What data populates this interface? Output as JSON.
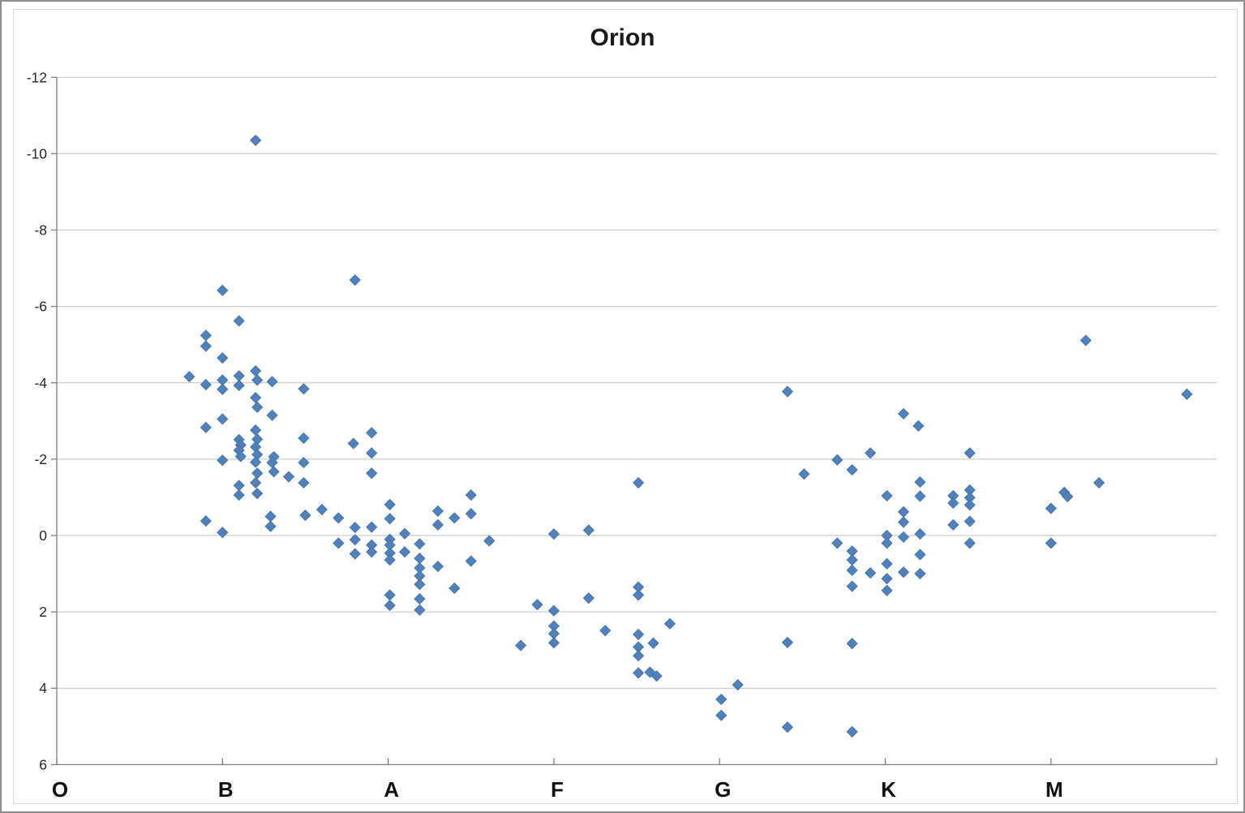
{
  "chart_data": {
    "type": "scatter",
    "title": "Orion",
    "xlabel": "",
    "ylabel": "",
    "x_axis": {
      "categories": [
        "O",
        "B",
        "A",
        "F",
        "G",
        "K",
        "M"
      ],
      "unit": "spectral class (fractional subclass 0=O ... 6=M)"
    },
    "y_axis": {
      "ticks": [
        -12,
        -10,
        -8,
        -6,
        -4,
        -2,
        0,
        2,
        4,
        6
      ],
      "min": -12,
      "max": 6,
      "inverted": true,
      "unit": "magnitude"
    },
    "legend": "none",
    "grid": "horizontal-only",
    "colors": {
      "marker_fill": "#4F81BD",
      "marker_stroke": "#426FA1",
      "gridline": "#C0C0C0",
      "axis": "#808080",
      "title_text": "#1A1A1A",
      "tick_text": "#262626"
    },
    "marker": {
      "shape": "diamond",
      "half_size_px": 6.5
    },
    "points": [
      [
        0.8,
        -4.16
      ],
      [
        0.9,
        -5.24
      ],
      [
        0.9,
        -4.96
      ],
      [
        0.9,
        -3.95
      ],
      [
        0.9,
        -2.83
      ],
      [
        0.9,
        -0.38
      ],
      [
        1.0,
        -6.42
      ],
      [
        1.0,
        -4.65
      ],
      [
        1.0,
        -4.07
      ],
      [
        1.0,
        -3.83
      ],
      [
        1.0,
        -3.05
      ],
      [
        1.0,
        -1.97
      ],
      [
        1.0,
        -0.08
      ],
      [
        1.1,
        -5.62
      ],
      [
        1.1,
        -4.18
      ],
      [
        1.1,
        -3.93
      ],
      [
        1.1,
        -2.51
      ],
      [
        1.11,
        -2.37
      ],
      [
        1.1,
        -2.23
      ],
      [
        1.11,
        -2.07
      ],
      [
        1.1,
        -1.31
      ],
      [
        1.1,
        -1.06
      ],
      [
        1.2,
        -10.35
      ],
      [
        1.2,
        -4.31
      ],
      [
        1.21,
        -4.07
      ],
      [
        1.2,
        -3.61
      ],
      [
        1.21,
        -3.36
      ],
      [
        1.2,
        -2.76
      ],
      [
        1.21,
        -2.52
      ],
      [
        1.2,
        -2.32
      ],
      [
        1.21,
        -2.12
      ],
      [
        1.2,
        -1.92
      ],
      [
        1.21,
        -1.63
      ],
      [
        1.2,
        -1.38
      ],
      [
        1.21,
        -1.1
      ],
      [
        1.3,
        -4.03
      ],
      [
        1.3,
        -3.15
      ],
      [
        1.31,
        -2.06
      ],
      [
        1.3,
        -1.91
      ],
      [
        1.31,
        -1.67
      ],
      [
        1.29,
        -0.5
      ],
      [
        1.29,
        -0.24
      ],
      [
        1.4,
        -1.54
      ],
      [
        1.49,
        -3.84
      ],
      [
        1.49,
        -2.55
      ],
      [
        1.49,
        -1.91
      ],
      [
        1.49,
        -1.38
      ],
      [
        1.5,
        -0.53
      ],
      [
        1.6,
        -0.68
      ],
      [
        1.7,
        -0.46
      ],
      [
        1.7,
        0.2
      ],
      [
        1.8,
        -6.69
      ],
      [
        1.79,
        -2.41
      ],
      [
        1.8,
        -0.21
      ],
      [
        1.8,
        0.11
      ],
      [
        1.8,
        0.48
      ],
      [
        1.9,
        -2.69
      ],
      [
        1.9,
        -2.16
      ],
      [
        1.9,
        -1.63
      ],
      [
        1.9,
        -0.22
      ],
      [
        1.9,
        0.25
      ],
      [
        1.9,
        0.43
      ],
      [
        2.01,
        -0.81
      ],
      [
        2.01,
        -0.44
      ],
      [
        2.01,
        0.1
      ],
      [
        2.01,
        0.25
      ],
      [
        2.01,
        0.46
      ],
      [
        2.01,
        0.64
      ],
      [
        2.01,
        1.56
      ],
      [
        2.01,
        1.83
      ],
      [
        2.1,
        -0.05
      ],
      [
        2.1,
        0.43
      ],
      [
        2.19,
        0.22
      ],
      [
        2.19,
        0.6
      ],
      [
        2.19,
        0.85
      ],
      [
        2.19,
        1.06
      ],
      [
        2.19,
        1.28
      ],
      [
        2.19,
        1.66
      ],
      [
        2.19,
        1.95
      ],
      [
        2.3,
        -0.64
      ],
      [
        2.3,
        -0.28
      ],
      [
        2.3,
        0.81
      ],
      [
        2.4,
        -0.46
      ],
      [
        2.4,
        1.38
      ],
      [
        2.5,
        -1.06
      ],
      [
        2.5,
        -0.57
      ],
      [
        2.5,
        0.67
      ],
      [
        2.61,
        0.14
      ],
      [
        2.8,
        2.88
      ],
      [
        2.9,
        1.81
      ],
      [
        3.0,
        -0.04
      ],
      [
        3.0,
        1.97
      ],
      [
        3.0,
        2.37
      ],
      [
        3.0,
        2.57
      ],
      [
        3.0,
        2.81
      ],
      [
        3.21,
        -0.14
      ],
      [
        3.21,
        1.64
      ],
      [
        3.31,
        2.49
      ],
      [
        3.51,
        -1.38
      ],
      [
        3.51,
        1.35
      ],
      [
        3.51,
        1.56
      ],
      [
        3.51,
        2.59
      ],
      [
        3.51,
        2.92
      ],
      [
        3.51,
        3.15
      ],
      [
        3.51,
        3.6
      ],
      [
        3.6,
        2.82
      ],
      [
        3.58,
        3.58
      ],
      [
        3.62,
        3.68
      ],
      [
        3.7,
        2.31
      ],
      [
        4.01,
        4.29
      ],
      [
        4.01,
        4.71
      ],
      [
        4.11,
        3.91
      ],
      [
        4.41,
        -3.77
      ],
      [
        4.41,
        2.8
      ],
      [
        4.41,
        5.02
      ],
      [
        4.51,
        -1.61
      ],
      [
        4.71,
        -1.98
      ],
      [
        4.71,
        0.2
      ],
      [
        4.8,
        -1.72
      ],
      [
        4.8,
        0.41
      ],
      [
        4.8,
        0.64
      ],
      [
        4.8,
        0.91
      ],
      [
        4.8,
        1.33
      ],
      [
        4.8,
        2.83
      ],
      [
        4.8,
        5.14
      ],
      [
        4.91,
        -2.16
      ],
      [
        4.91,
        0.98
      ],
      [
        5.01,
        -1.04
      ],
      [
        5.01,
        0.0
      ],
      [
        5.01,
        0.2
      ],
      [
        5.01,
        0.74
      ],
      [
        5.01,
        1.13
      ],
      [
        5.01,
        1.44
      ],
      [
        5.11,
        -3.19
      ],
      [
        5.11,
        -0.62
      ],
      [
        5.11,
        -0.35
      ],
      [
        5.11,
        0.04
      ],
      [
        5.11,
        0.96
      ],
      [
        5.2,
        -2.87
      ],
      [
        5.21,
        -1.4
      ],
      [
        5.21,
        -1.03
      ],
      [
        5.21,
        -0.04
      ],
      [
        5.21,
        0.5
      ],
      [
        5.21,
        1.0
      ],
      [
        5.41,
        -1.04
      ],
      [
        5.41,
        -0.85
      ],
      [
        5.41,
        -0.28
      ],
      [
        5.51,
        -2.16
      ],
      [
        5.51,
        -1.19
      ],
      [
        5.51,
        -0.99
      ],
      [
        5.51,
        -0.8
      ],
      [
        5.51,
        -0.37
      ],
      [
        5.51,
        0.2
      ],
      [
        6.0,
        -0.71
      ],
      [
        6.0,
        0.2
      ],
      [
        6.08,
        -1.13
      ],
      [
        6.1,
        -1.02
      ],
      [
        6.29,
        -1.38
      ],
      [
        6.21,
        -5.11
      ],
      [
        6.82,
        -3.7
      ]
    ]
  }
}
